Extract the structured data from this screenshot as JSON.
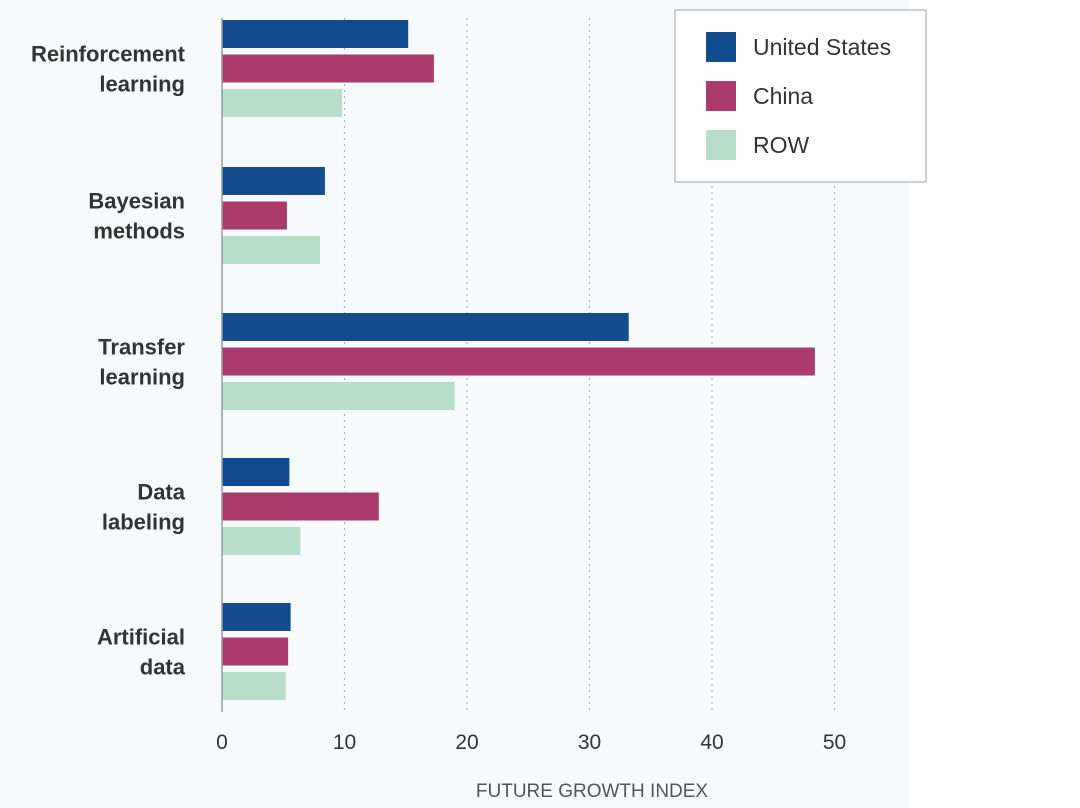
{
  "chart_data": {
    "type": "bar",
    "orientation": "horizontal",
    "categories": [
      "Reinforcement learning",
      "Bayesian methods",
      "Transfer learning",
      "Data labeling",
      "Artificial data"
    ],
    "category_lines": [
      [
        "Reinforcement",
        "learning"
      ],
      [
        "Bayesian",
        "methods"
      ],
      [
        "Transfer",
        "learning"
      ],
      [
        "Data",
        "labeling"
      ],
      [
        "Artificial",
        "data"
      ]
    ],
    "series": [
      {
        "name": "United States",
        "color": "#124c8e",
        "values": [
          15.2,
          8.4,
          33.2,
          5.5,
          5.6
        ]
      },
      {
        "name": "China",
        "color": "#ab3b6c",
        "values": [
          17.3,
          5.3,
          48.4,
          12.8,
          5.4
        ]
      },
      {
        "name": "ROW",
        "color": "#b7dfcc",
        "values": [
          9.8,
          8.0,
          19.0,
          6.4,
          5.2
        ]
      }
    ],
    "xticks": [
      0,
      10,
      20,
      30,
      40,
      50
    ],
    "xlim": [
      0,
      50
    ],
    "xlabel": "FUTURE GROWTH INDEX",
    "ylabel": "",
    "title": "",
    "grid": "vertical dotted",
    "legend_position": "top-right"
  }
}
